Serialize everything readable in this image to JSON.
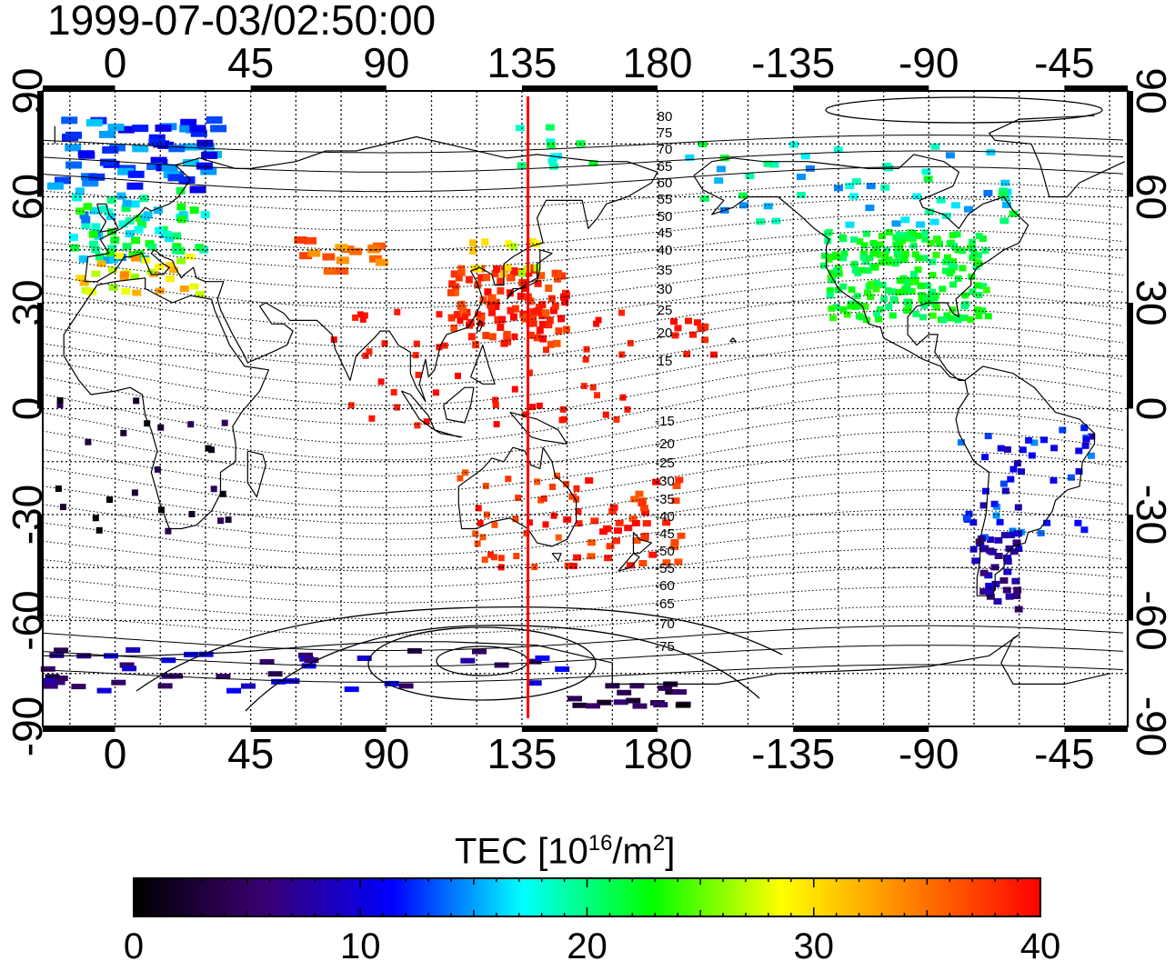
{
  "timestamp": "1999-07-03/02:50:00",
  "map": {
    "top_lon_labels": [
      "0",
      "45",
      "90",
      "135",
      "180",
      "-135",
      "-90",
      "-45"
    ],
    "bottom_lon_labels": [
      "0",
      "45",
      "90",
      "135",
      "180",
      "-135",
      "-90",
      "-45"
    ],
    "lat_labels": [
      "90",
      "60",
      "30",
      "0",
      "-30",
      "-60",
      "-90"
    ],
    "contour_labels": [
      "80",
      "75",
      "70",
      "65",
      "60",
      "55",
      "50",
      "45",
      "40",
      "35",
      "30",
      "25",
      "20",
      "15",
      "-15",
      "-20",
      "-25",
      "-30",
      "-35",
      "-40",
      "-45",
      "-50",
      "-55",
      "-60",
      "-65",
      "-70",
      "-75"
    ],
    "marker_longitude": 137,
    "marker_color": "#ff0000"
  },
  "colorbar": {
    "title_prefix": "TEC  [10",
    "title_exp1": "16",
    "title_mid": "/m",
    "title_exp2": "2",
    "title_suffix": "]",
    "min": 0,
    "max": 40,
    "tick_labels": [
      "0",
      "10",
      "20",
      "30",
      "40"
    ],
    "colors": [
      "#000000",
      "#3a0070",
      "#0000ff",
      "#00ffff",
      "#00ff00",
      "#ffff00",
      "#ff8000",
      "#ff0000"
    ]
  }
}
